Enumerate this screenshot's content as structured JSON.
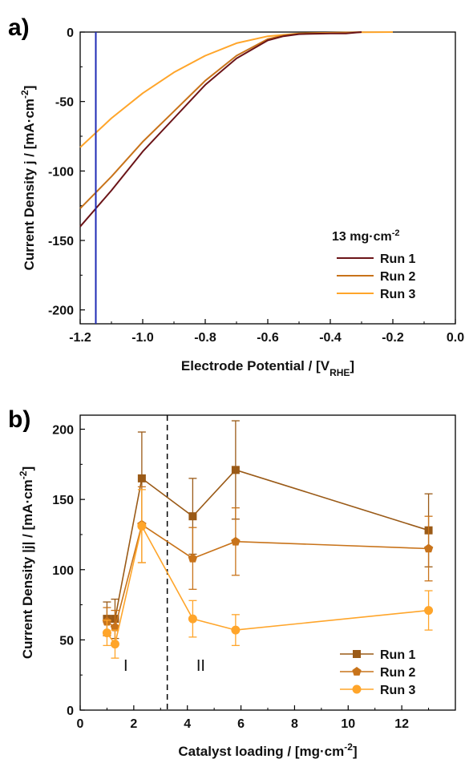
{
  "chart_data": [
    {
      "panel_label": "a)",
      "type": "line",
      "xlabel": "Electrode Potential / [V",
      "xlabel_sub": "RHE",
      "xlabel_end": "]",
      "ylabel": "Current Density j / [mA·cm",
      "ylabel_sup": "-2",
      "ylabel_end": "]",
      "xlim": [
        -1.2,
        0.0
      ],
      "ylim": [
        -210,
        0
      ],
      "xticks": [
        "-1.2",
        "-1.0",
        "-0.8",
        "-0.6",
        "-0.4",
        "-0.2",
        "0.0"
      ],
      "xtick_values": [
        -1.2,
        -1.0,
        -0.8,
        -0.6,
        -0.4,
        -0.2,
        0.0
      ],
      "yticks": [
        "0",
        "-50",
        "-100",
        "-150",
        "-200"
      ],
      "ytick_values": [
        0,
        -50,
        -100,
        -150,
        -200
      ],
      "vline": {
        "x": -1.15,
        "color": "#1f2bb5"
      },
      "legend_title": "13 mg·cm",
      "legend_title_sup": "-2",
      "legend_position": "lower-right",
      "series": [
        {
          "name": "Run 1",
          "color": "#6b1418",
          "x": [
            -1.2,
            -1.1,
            -1.0,
            -0.9,
            -0.8,
            -0.7,
            -0.6,
            -0.55,
            -0.5,
            -0.4,
            -0.35,
            -0.3
          ],
          "y": [
            -140,
            -114,
            -86,
            -62,
            -38,
            -19,
            -6,
            -3,
            -1.5,
            -1,
            -1,
            0
          ]
        },
        {
          "name": "Run 2",
          "color": "#c8731a",
          "x": [
            -1.2,
            -1.1,
            -1.0,
            -0.9,
            -0.8,
            -0.7,
            -0.6,
            -0.55,
            -0.5,
            -0.4,
            -0.35,
            -0.3
          ],
          "y": [
            -127,
            -104,
            -79,
            -57,
            -35,
            -17,
            -5,
            -2.5,
            -1.2,
            -0.8,
            -0.5,
            0
          ]
        },
        {
          "name": "Run 3",
          "color": "#ffa52a",
          "x": [
            -1.2,
            -1.1,
            -1.0,
            -0.9,
            -0.8,
            -0.7,
            -0.6,
            -0.5,
            -0.4,
            -0.3,
            -0.2
          ],
          "y": [
            -83,
            -62,
            -44,
            -29,
            -17,
            -8,
            -3,
            -1,
            -0.5,
            -0.2,
            0
          ]
        }
      ]
    },
    {
      "panel_label": "b)",
      "type": "line",
      "xlabel": "Catalyst loading / [mg·cm",
      "xlabel_sup": "-2",
      "xlabel_end": "]",
      "ylabel": "Current Density |j| / [mA·cm",
      "ylabel_sup": "-2",
      "ylabel_end": "]",
      "xlim": [
        0,
        14
      ],
      "ylim": [
        0,
        210
      ],
      "xticks": [
        "0",
        "2",
        "4",
        "6",
        "8",
        "10",
        "12"
      ],
      "xtick_values": [
        0,
        2,
        4,
        6,
        8,
        10,
        12
      ],
      "yticks": [
        "0",
        "50",
        "100",
        "150",
        "200"
      ],
      "ytick_values": [
        0,
        50,
        100,
        150,
        200
      ],
      "divider_x": 3.25,
      "region_labels": [
        {
          "text": "I",
          "x": 1.7
        },
        {
          "text": "II",
          "x": 4.5
        }
      ],
      "region_label_y": 28,
      "legend_position": "lower-right",
      "x": [
        1.0,
        1.3,
        2.3,
        4.2,
        5.8,
        13.0
      ],
      "series": [
        {
          "name": "Run 1",
          "marker": "square",
          "color": "#9a5a17",
          "values": [
            65,
            65,
            165,
            138,
            171,
            128
          ],
          "errors": [
            12,
            14,
            33,
            27,
            35,
            26
          ]
        },
        {
          "name": "Run 2",
          "marker": "pentagon",
          "color": "#c8731a",
          "values": [
            63,
            59,
            132,
            108,
            120,
            115
          ],
          "errors": [
            10,
            12,
            27,
            22,
            24,
            23
          ]
        },
        {
          "name": "Run 3",
          "marker": "circle",
          "color": "#ffa52a",
          "values": [
            55,
            47,
            131,
            65,
            57,
            71
          ],
          "errors": [
            9,
            10,
            26,
            13,
            11,
            14
          ]
        }
      ]
    }
  ]
}
